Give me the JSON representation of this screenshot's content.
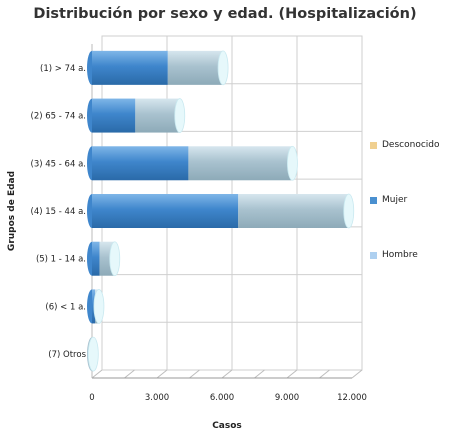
{
  "chart_data": {
    "type": "bar",
    "orientation": "horizontal",
    "stacked": true,
    "title": "Distribución por sexo y edad. (Hospitalización)",
    "xlabel": "Casos",
    "ylabel": "Grupos de Edad",
    "categories": [
      "(1) > 74 a.",
      "(2) 65 - 74 a.",
      "(3) 45 - 64 a.",
      "(4) 15 - 44 a.",
      "(5) 1 - 14 a.",
      "(6) < 1 a.",
      "(7) Otros"
    ],
    "series": [
      {
        "name": "Hombre",
        "values": [
          0,
          0,
          0,
          0,
          0,
          0,
          0
        ],
        "color": "#aed0f0"
      },
      {
        "name": "Mujer",
        "values": [
          3500,
          2000,
          4450,
          6750,
          350,
          150,
          0
        ],
        "color": "#4a90d0"
      },
      {
        "name": "Hombre",
        "values": [
          2550,
          2050,
          4800,
          5100,
          700,
          170,
          60
        ],
        "color": "#b4ccd8"
      },
      {
        "name": "Desconocido",
        "values": [
          0,
          0,
          0,
          0,
          0,
          0,
          0
        ],
        "color": "#f0d090"
      }
    ],
    "xlim": [
      0,
      12000
    ],
    "xticks": [
      "0",
      "3.000",
      "6.000",
      "9.000",
      "12.000"
    ],
    "xtick_values": [
      0,
      3000,
      6000,
      9000,
      12000
    ],
    "grid": true,
    "legend_position": "right",
    "legend": [
      {
        "label": "Desconocido",
        "color": "#f0d090"
      },
      {
        "label": "Mujer",
        "color": "#4a90d0"
      },
      {
        "label": "Hombre",
        "color": "#aed0f0"
      }
    ]
  }
}
